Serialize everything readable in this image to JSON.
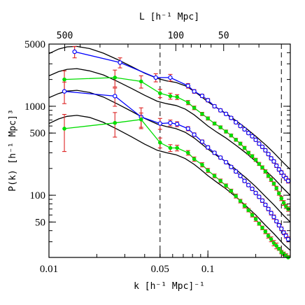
{
  "chart_data": {
    "type": "scatter",
    "xscale": "log",
    "yscale": "log",
    "xlim": [
      0.01,
      0.33
    ],
    "ylim": [
      20,
      5000
    ],
    "xlabel": "k  [h⁻¹ Mpc]⁻¹",
    "ylabel": "P(k)  [h⁻¹ Mpc]³",
    "top_xlabel": "L  [h⁻¹ Mpc]",
    "x_ticks": [
      {
        "value": 0.01,
        "label": "0.01"
      },
      {
        "value": 0.05,
        "label": "0.05"
      },
      {
        "value": 0.1,
        "label": "0.1"
      }
    ],
    "y_ticks": [
      {
        "value": 5000,
        "label": "5000"
      },
      {
        "value": 1000,
        "label": "1000"
      },
      {
        "value": 500,
        "label": "500"
      },
      {
        "value": 100,
        "label": "100"
      },
      {
        "value": 50,
        "label": "50"
      }
    ],
    "top_ticks": [
      {
        "value": 500,
        "label": "500"
      },
      {
        "value": 100,
        "label": "100"
      },
      {
        "value": 50,
        "label": "50"
      }
    ],
    "vlines": [
      0.05,
      0.29
    ],
    "curves": [
      {
        "x": [
          0.01,
          0.0115,
          0.013,
          0.015,
          0.018,
          0.022,
          0.027,
          0.033,
          0.04,
          0.048,
          0.055,
          0.063,
          0.072,
          0.082,
          0.09,
          0.1,
          0.115,
          0.13,
          0.15,
          0.175,
          0.2,
          0.23,
          0.26,
          0.3,
          0.33
        ],
        "y": [
          3900,
          4400,
          4650,
          4700,
          4450,
          3950,
          3350,
          2800,
          2350,
          2060,
          1930,
          1850,
          1700,
          1470,
          1300,
          1120,
          950,
          830,
          690,
          560,
          460,
          370,
          300,
          230,
          195
        ]
      },
      {
        "x": [
          0.01,
          0.0115,
          0.013,
          0.015,
          0.018,
          0.022,
          0.027,
          0.033,
          0.04,
          0.048,
          0.055,
          0.063,
          0.072,
          0.082,
          0.09,
          0.1,
          0.115,
          0.13,
          0.15,
          0.175,
          0.2,
          0.23,
          0.26,
          0.3,
          0.33
        ],
        "y": [
          2200,
          2450,
          2600,
          2650,
          2500,
          2250,
          1900,
          1590,
          1330,
          1140,
          1070,
          1020,
          930,
          800,
          700,
          600,
          505,
          440,
          365,
          295,
          240,
          190,
          155,
          118,
          100
        ]
      },
      {
        "x": [
          0.01,
          0.0115,
          0.013,
          0.015,
          0.018,
          0.022,
          0.027,
          0.033,
          0.04,
          0.048,
          0.055,
          0.063,
          0.072,
          0.082,
          0.09,
          0.1,
          0.115,
          0.13,
          0.15,
          0.175,
          0.2,
          0.23,
          0.26,
          0.3,
          0.33
        ],
        "y": [
          1250,
          1390,
          1480,
          1510,
          1430,
          1270,
          1060,
          880,
          730,
          630,
          590,
          560,
          510,
          440,
          385,
          330,
          275,
          238,
          195,
          155,
          125,
          97,
          78,
          59,
          50
        ]
      },
      {
        "x": [
          0.01,
          0.0115,
          0.013,
          0.015,
          0.018,
          0.022,
          0.027,
          0.033,
          0.04,
          0.048,
          0.055,
          0.063,
          0.072,
          0.082,
          0.09,
          0.1,
          0.115,
          0.13,
          0.15,
          0.175,
          0.2,
          0.23,
          0.26,
          0.3,
          0.33
        ],
        "y": [
          640,
          720,
          770,
          790,
          750,
          660,
          550,
          455,
          375,
          320,
          300,
          285,
          258,
          222,
          195,
          166,
          138,
          118,
          96,
          75,
          60,
          46,
          37,
          28,
          24
        ]
      }
    ],
    "series": [
      {
        "color": "#0000ff",
        "x": [
          0.0145,
          0.028,
          0.047,
          0.058,
          0.075,
          0.082,
          0.092,
          0.1,
          0.11,
          0.12,
          0.13,
          0.14,
          0.15,
          0.16,
          0.17,
          0.18,
          0.19,
          0.2,
          0.21,
          0.22,
          0.23,
          0.24,
          0.25,
          0.26,
          0.27,
          0.28,
          0.29,
          0.3,
          0.31,
          0.32
        ],
        "y": [
          4100,
          3100,
          2100,
          2100,
          1700,
          1470,
          1310,
          1170,
          1000,
          900,
          820,
          740,
          660,
          600,
          550,
          500,
          460,
          420,
          380,
          350,
          320,
          290,
          260,
          240,
          215,
          195,
          180,
          165,
          155,
          145
        ],
        "err": [
          600,
          400,
          220,
          180,
          100,
          70,
          55,
          50,
          40,
          35,
          30,
          28,
          25,
          22,
          20,
          18,
          17,
          16,
          15,
          14,
          13,
          12,
          11,
          10,
          10,
          9,
          9,
          8,
          8,
          8
        ]
      },
      {
        "color": "#00dd00",
        "x": [
          0.0125,
          0.026,
          0.038,
          0.05,
          0.058,
          0.064,
          0.075,
          0.082,
          0.092,
          0.1,
          0.11,
          0.12,
          0.13,
          0.14,
          0.15,
          0.16,
          0.17,
          0.18,
          0.19,
          0.2,
          0.21,
          0.22,
          0.23,
          0.24,
          0.25,
          0.26,
          0.27,
          0.28,
          0.29,
          0.3,
          0.31,
          0.32
        ],
        "y": [
          2000,
          2100,
          1900,
          1400,
          1300,
          1270,
          1100,
          960,
          820,
          730,
          640,
          580,
          520,
          470,
          420,
          380,
          340,
          300,
          275,
          250,
          225,
          205,
          185,
          165,
          150,
          135,
          120,
          105,
          92,
          82,
          75,
          70
        ],
        "err": [
          500,
          450,
          300,
          150,
          100,
          80,
          60,
          45,
          35,
          30,
          25,
          22,
          20,
          18,
          16,
          15,
          14,
          12,
          11,
          10,
          9,
          9,
          8,
          7,
          7,
          6,
          6,
          5,
          5,
          5,
          4,
          4
        ]
      },
      {
        "color": "#0000ff",
        "x": [
          0.0125,
          0.026,
          0.038,
          0.05,
          0.058,
          0.064,
          0.075,
          0.082,
          0.092,
          0.1,
          0.11,
          0.12,
          0.13,
          0.14,
          0.15,
          0.16,
          0.17,
          0.18,
          0.19,
          0.2,
          0.21,
          0.22,
          0.23,
          0.24,
          0.25,
          0.26,
          0.27,
          0.28,
          0.29,
          0.3,
          0.31,
          0.32
        ],
        "y": [
          1470,
          1300,
          760,
          640,
          650,
          630,
          560,
          480,
          400,
          345,
          300,
          265,
          235,
          208,
          185,
          165,
          145,
          130,
          118,
          106,
          96,
          87,
          78,
          70,
          63,
          57,
          51,
          46,
          42,
          38,
          35,
          32
        ],
        "err": [
          400,
          300,
          200,
          90,
          50,
          40,
          30,
          22,
          18,
          15,
          12,
          10,
          9,
          8,
          7,
          6,
          6,
          5,
          5,
          4,
          4,
          4,
          3,
          3,
          3,
          3,
          2,
          2,
          2,
          2,
          2,
          2
        ]
      },
      {
        "color": "#00dd00",
        "x": [
          0.0125,
          0.026,
          0.038,
          0.05,
          0.058,
          0.064,
          0.075,
          0.082,
          0.092,
          0.1,
          0.11,
          0.12,
          0.13,
          0.14,
          0.15,
          0.16,
          0.17,
          0.18,
          0.19,
          0.2,
          0.21,
          0.22,
          0.23,
          0.24,
          0.25,
          0.26,
          0.27,
          0.28,
          0.29,
          0.3,
          0.31,
          0.32
        ],
        "y": [
          560,
          650,
          710,
          390,
          340,
          340,
          300,
          255,
          220,
          190,
          165,
          145,
          128,
          112,
          98,
          86,
          76,
          68,
          60,
          54,
          48,
          43,
          39,
          35,
          32,
          29,
          27,
          25,
          23,
          22,
          21,
          20
        ],
        "err": [
          250,
          200,
          130,
          50,
          30,
          25,
          18,
          14,
          12,
          10,
          8,
          7,
          6,
          5,
          5,
          4,
          4,
          3,
          3,
          3,
          2,
          2,
          2,
          2,
          2,
          2,
          2,
          1,
          1,
          1,
          1,
          1
        ]
      }
    ],
    "errorbar_color": "#dd2222"
  }
}
